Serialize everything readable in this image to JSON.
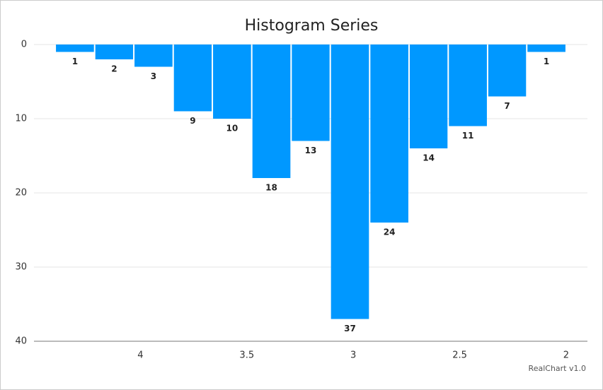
{
  "chart_data": {
    "type": "histogram",
    "title": "Histogram Series",
    "credit": "RealChart v1.0",
    "bins": [
      4.4,
      4.215,
      4.031,
      3.846,
      3.662,
      3.477,
      3.292,
      3.108,
      2.923,
      2.738,
      2.554,
      2.369,
      2.185,
      2.0
    ],
    "values": [
      1,
      2,
      3,
      9,
      10,
      18,
      13,
      37,
      24,
      14,
      11,
      7,
      1
    ],
    "color": "#0098ff",
    "xlim": [
      4.5,
      1.9
    ],
    "xticks": [
      4,
      3.5,
      3,
      2.5,
      2
    ],
    "ylim": [
      40,
      0
    ],
    "yticks": [
      0,
      10,
      20,
      30,
      40
    ],
    "grid": true
  }
}
